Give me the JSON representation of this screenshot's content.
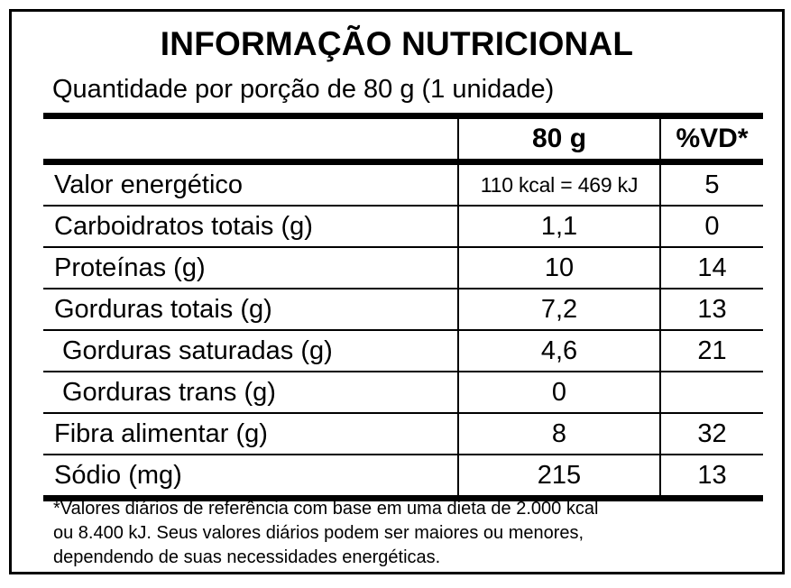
{
  "title": "INFORMAÇÃO NUTRICIONAL",
  "serving": "Quantidade por porção de 80 g (1 unidade)",
  "table": {
    "headers": {
      "nutrient": "",
      "amount": "80 g",
      "dv": "%VD*"
    },
    "rows": [
      {
        "name": "Valor energético",
        "amount": "110 kcal = 469 kJ",
        "dv": "5"
      },
      {
        "name": "Carboidratos totais (g)",
        "amount": "1,1",
        "dv": "0"
      },
      {
        "name": "Proteínas (g)",
        "amount": "10",
        "dv": "14"
      },
      {
        "name": "Gorduras totais (g)",
        "amount": "7,2",
        "dv": "13"
      },
      {
        "name": "Gorduras saturadas (g)",
        "amount": "4,6",
        "dv": "21"
      },
      {
        "name": "Gorduras trans (g)",
        "amount": "0",
        "dv": ""
      },
      {
        "name": "Fibra alimentar (g)",
        "amount": "8",
        "dv": "32"
      },
      {
        "name": "Sódio (mg)",
        "amount": "215",
        "dv": "13"
      }
    ]
  },
  "footnote": {
    "line1": "*Valores diários de referência com base em uma dieta de 2.000 kcal",
    "line2": "ou 8.400 kJ. Seus valores diários podem ser maiores ou menores,",
    "line3": "dependendo de suas necessidades energéticas."
  }
}
